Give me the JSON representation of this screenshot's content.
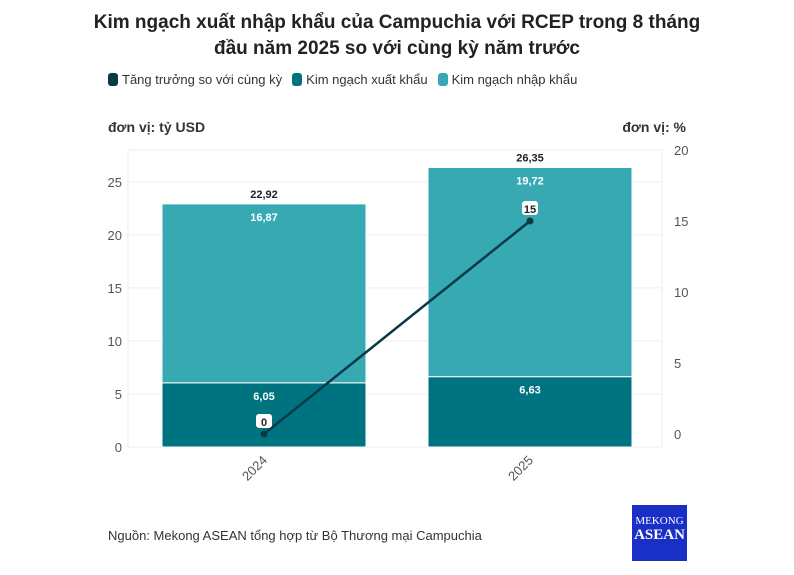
{
  "title_line1": "Kim ngạch xuất nhập khẩu của Campuchia với RCEP trong 8 tháng",
  "title_line2": "đầu năm 2025 so với cùng kỳ năm trước",
  "unit_left": "đơn vị: tỷ USD",
  "unit_right": "đơn vị: %",
  "source": "Nguồn: Mekong ASEAN tổng hợp từ Bộ Thương mại Campuchia",
  "logo": {
    "line1": "MEKONG",
    "line2": "ASEAN"
  },
  "colors": {
    "growth": "#0b3a47",
    "export": "#007380",
    "import": "#37a9b3"
  },
  "chart_data": {
    "type": "bar",
    "stacked": true,
    "categories": [
      "2024",
      "2025"
    ],
    "series": [
      {
        "name": "Kim ngạch xuất khẩu",
        "values": [
          6.05,
          6.63
        ],
        "labels": [
          "6,05",
          "6,63"
        ]
      },
      {
        "name": "Kim ngạch nhập khẩu",
        "values": [
          16.87,
          19.72
        ],
        "labels": [
          "16,87",
          "19,72"
        ]
      }
    ],
    "totals": [
      22.92,
      26.35
    ],
    "total_labels": [
      "22,92",
      "26,35"
    ],
    "line_series": {
      "name": "Tăng trưởng so với cùng kỳ",
      "values": [
        0,
        15
      ],
      "labels": [
        "0",
        "15"
      ],
      "axis": "right"
    },
    "legend": [
      "Tăng trưởng so với cùng kỳ",
      "Kim ngạch xuất khẩu",
      "Kim ngạch nhập khẩu"
    ],
    "left_ticks": [
      "0",
      "5",
      "10",
      "15",
      "20",
      "25"
    ],
    "right_ticks": [
      "0",
      "5",
      "10",
      "15",
      "20"
    ],
    "ylim": [
      0,
      28
    ],
    "y2lim": [
      -0.92,
      20
    ],
    "legend_position": "top-left"
  }
}
